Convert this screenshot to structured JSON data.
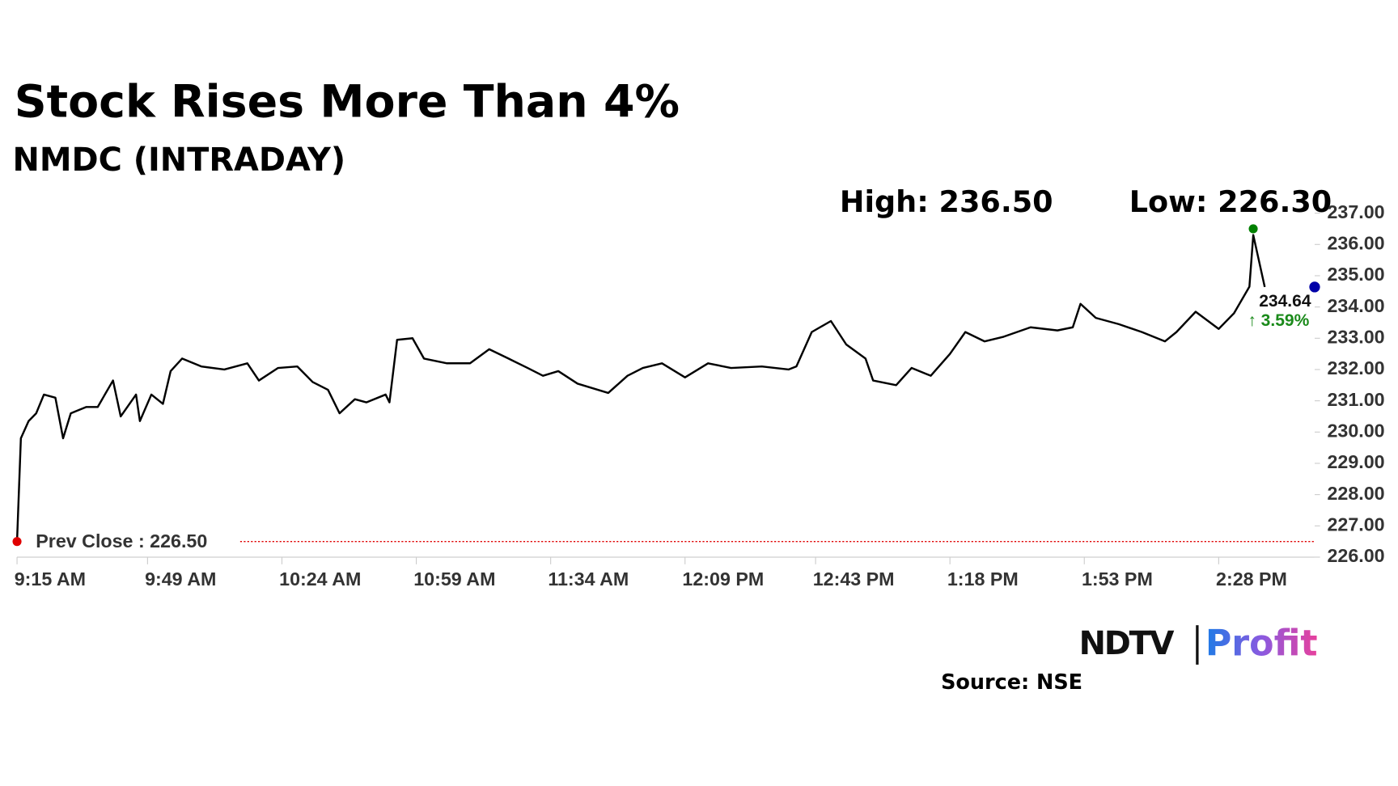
{
  "chart_data": {
    "type": "line",
    "title": "Stock Rises More Than 4%",
    "subtitle": "NMDC (INTRADAY)",
    "high": {
      "label": "High: 236.50",
      "value": 236.5,
      "x": 877,
      "color": "#008000"
    },
    "low": {
      "label": "Low: 226.30"
    },
    "prev_close": {
      "value": 226.5,
      "label": "Prev Close : 226.50",
      "color": "#e00000"
    },
    "current": {
      "value": 234.64,
      "label": "234.64",
      "change": "↑ 3.59%",
      "change_color": "#1a8a1a",
      "color": "#0000a8"
    },
    "x": [
      555,
      556,
      558,
      560,
      562,
      565,
      567,
      569,
      573,
      576,
      580,
      582,
      586,
      587,
      590,
      593,
      595,
      598,
      603,
      609,
      615,
      618,
      623,
      628,
      632,
      636,
      639,
      643,
      646,
      651,
      652,
      654,
      658,
      661,
      667,
      673,
      678,
      683,
      688,
      692,
      696,
      701,
      709,
      714,
      718,
      723,
      729,
      735,
      741,
      749,
      756,
      758,
      762,
      767,
      771,
      776,
      778,
      784,
      788,
      793,
      798,
      802,
      807,
      812,
      819,
      826,
      830,
      832,
      836,
      842,
      848,
      854,
      857,
      862,
      868,
      872,
      876,
      877,
      880
    ],
    "series": [
      {
        "name": "NMDC",
        "color": "#000000",
        "values": [
          226.5,
          229.8,
          230.35,
          230.6,
          231.2,
          231.1,
          229.8,
          230.6,
          230.8,
          230.8,
          231.65,
          230.5,
          231.2,
          230.35,
          231.2,
          230.9,
          231.95,
          232.35,
          232.1,
          232.0,
          232.2,
          231.65,
          232.05,
          232.1,
          231.6,
          231.35,
          230.6,
          231.05,
          230.95,
          231.2,
          230.95,
          232.95,
          233.0,
          232.35,
          232.2,
          232.2,
          232.65,
          232.35,
          232.05,
          231.8,
          231.95,
          231.55,
          231.25,
          231.8,
          232.05,
          232.2,
          231.75,
          232.2,
          232.05,
          232.1,
          232.0,
          232.1,
          233.2,
          233.55,
          232.8,
          232.35,
          231.65,
          231.5,
          232.05,
          231.8,
          232.5,
          233.2,
          232.9,
          233.05,
          233.35,
          233.25,
          233.35,
          234.1,
          233.65,
          233.45,
          233.2,
          232.9,
          233.2,
          233.85,
          233.3,
          233.8,
          234.65,
          236.3,
          234.64
        ]
      }
    ],
    "xlim": [
      555,
      893
    ],
    "xticks": [
      {
        "value": 555,
        "label": "9:15 AM"
      },
      {
        "value": 589,
        "label": "9:49 AM"
      },
      {
        "value": 624,
        "label": "10:24 AM"
      },
      {
        "value": 659,
        "label": "10:59 AM"
      },
      {
        "value": 694,
        "label": "11:34 AM"
      },
      {
        "value": 729,
        "label": "12:09 PM"
      },
      {
        "value": 763,
        "label": "12:43 PM"
      },
      {
        "value": 798,
        "label": "1:18 PM"
      },
      {
        "value": 833,
        "label": "1:53 PM"
      },
      {
        "value": 868,
        "label": "2:28 PM"
      }
    ],
    "ylim": [
      226,
      237
    ],
    "yticks": [
      {
        "value": 226,
        "label": "226.00"
      },
      {
        "value": 227,
        "label": "227.00"
      },
      {
        "value": 228,
        "label": "228.00"
      },
      {
        "value": 229,
        "label": "229.00"
      },
      {
        "value": 230,
        "label": "230.00"
      },
      {
        "value": 231,
        "label": "231.00"
      },
      {
        "value": 232,
        "label": "232.00"
      },
      {
        "value": 233,
        "label": "233.00"
      },
      {
        "value": 234,
        "label": "234.00"
      },
      {
        "value": 235,
        "label": "235.00"
      },
      {
        "value": 236,
        "label": "236.00"
      },
      {
        "value": 237,
        "label": "237.00"
      }
    ],
    "grid": false,
    "source": "Source: NSE",
    "logo": {
      "brand": "NDTV",
      "product": "Profit"
    }
  }
}
